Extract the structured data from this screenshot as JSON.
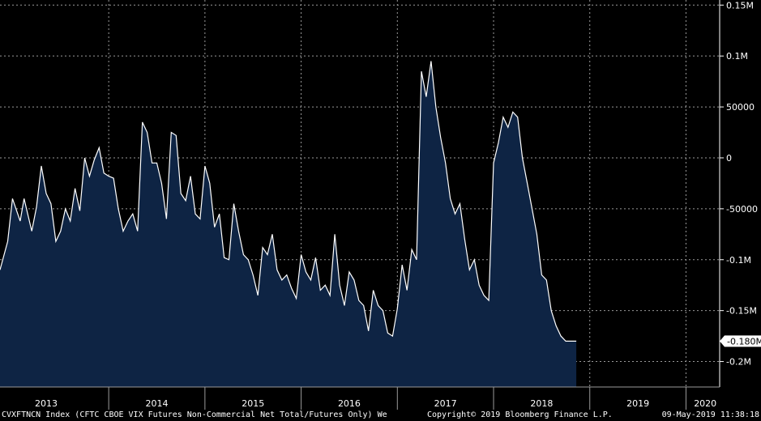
{
  "chart_data": {
    "type": "area",
    "title": "",
    "xlabel": "",
    "ylabel": "",
    "x_tick_labels": [
      "2013",
      "2014",
      "2015",
      "2016",
      "2017",
      "2018",
      "2019",
      "2020"
    ],
    "y_ticks": [
      150000,
      100000,
      50000,
      0,
      -50000,
      -100000,
      -150000,
      -200000
    ],
    "y_tick_labels": [
      "0.15M",
      "0.1M",
      "50000",
      "0",
      "-50000",
      "-0.1M",
      "-0.15M",
      "-0.2M"
    ],
    "ylim": [
      -225000,
      155000
    ],
    "last_value_label": "-0.180M",
    "grid": true,
    "colors": {
      "line": "#ffffff",
      "fill": "#0e2444",
      "background": "#000000",
      "grid": "#9a9a9a",
      "label_box": "#ffffff"
    },
    "series": [
      {
        "x": [
          2012.87,
          2012.95,
          2013.0,
          2013.08,
          2013.12,
          2013.2,
          2013.25,
          2013.3,
          2013.35,
          2013.4,
          2013.45,
          2013.5,
          2013.55,
          2013.6,
          2013.65,
          2013.7,
          2013.75,
          2013.8,
          2013.85,
          2013.9,
          2013.95,
          2014.0,
          2014.05,
          2014.1,
          2014.15,
          2014.2,
          2014.25,
          2014.3,
          2014.35,
          2014.4,
          2014.45,
          2014.5,
          2014.55,
          2014.6,
          2014.65,
          2014.7,
          2014.75,
          2014.8,
          2014.85,
          2014.9,
          2014.95,
          2015.0,
          2015.05,
          2015.1,
          2015.15,
          2015.2,
          2015.25,
          2015.3,
          2015.35,
          2015.4,
          2015.45,
          2015.5,
          2015.55,
          2015.6,
          2015.65,
          2015.7,
          2015.75,
          2015.8,
          2015.85,
          2015.9,
          2015.95,
          2016.0,
          2016.05,
          2016.1,
          2016.15,
          2016.2,
          2016.25,
          2016.3,
          2016.35,
          2016.4,
          2016.45,
          2016.5,
          2016.55,
          2016.6,
          2016.65,
          2016.7,
          2016.75,
          2016.8,
          2016.85,
          2016.9,
          2016.95,
          2017.0,
          2017.05,
          2017.1,
          2017.15,
          2017.2,
          2017.25,
          2017.3,
          2017.35,
          2017.4,
          2017.45,
          2017.5,
          2017.55,
          2017.6,
          2017.65,
          2017.7,
          2017.75,
          2017.8,
          2017.85,
          2017.9,
          2017.95,
          2018.0,
          2018.05,
          2018.1,
          2018.15,
          2018.2,
          2018.25,
          2018.3,
          2018.35,
          2018.4,
          2018.45,
          2018.5,
          2018.55,
          2018.6,
          2018.65,
          2018.7,
          2018.75,
          2018.8,
          2018.83,
          2018.86
        ],
        "values": [
          -110000,
          -82000,
          -40000,
          -62000,
          -40000,
          -72000,
          -48000,
          -8000,
          -35000,
          -45000,
          -82000,
          -72000,
          -50000,
          -62000,
          -30000,
          -52000,
          0,
          -18000,
          -2000,
          10000,
          -15000,
          -18000,
          -20000,
          -50000,
          -72000,
          -62000,
          -55000,
          -72000,
          35000,
          25000,
          -5000,
          -5000,
          -25000,
          -60000,
          25000,
          22000,
          -35000,
          -42000,
          -18000,
          -55000,
          -60000,
          -8000,
          -25000,
          -68000,
          -55000,
          -98000,
          -100000,
          -45000,
          -72000,
          -95000,
          -100000,
          -115000,
          -135000,
          -88000,
          -95000,
          -75000,
          -110000,
          -120000,
          -115000,
          -128000,
          -138000,
          -95000,
          -112000,
          -120000,
          -98000,
          -130000,
          -125000,
          -135000,
          -75000,
          -125000,
          -145000,
          -112000,
          -120000,
          -140000,
          -145000,
          -170000,
          -130000,
          -145000,
          -150000,
          -172000,
          -175000,
          -148000,
          -105000,
          -130000,
          -90000,
          -100000,
          85000,
          60000,
          95000,
          50000,
          20000,
          -5000,
          -40000,
          -55000,
          -45000,
          -80000,
          -110000,
          -100000,
          -125000,
          -135000,
          -140000,
          -5000,
          15000,
          40000,
          30000,
          45000,
          40000,
          0,
          -25000,
          -50000,
          -75000,
          -115000,
          -120000,
          -150000,
          -165000,
          -175000,
          -180000,
          -180000,
          -180000,
          -180000
        ]
      }
    ]
  },
  "footer": {
    "left": "CVXFTNCN Index (CFTC CBOE VIX Futures Non-Commercial Net Total/Futures Only)  We",
    "center": "Copyright© 2019 Bloomberg Finance L.P.",
    "right": "09-May-2019 11:38:18"
  }
}
